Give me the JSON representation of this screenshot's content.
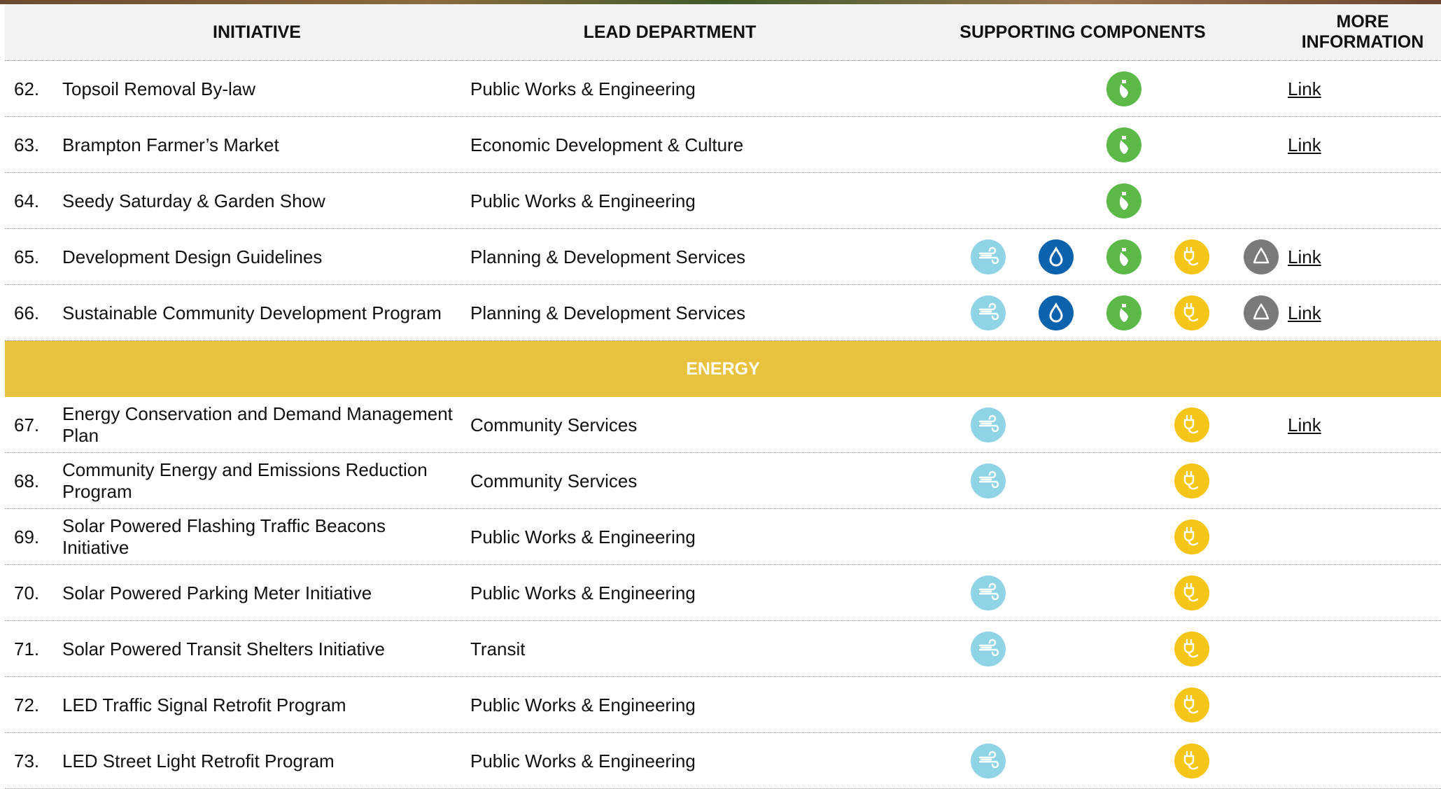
{
  "header": {
    "initiative": "INITIATIVE",
    "lead_department": "LEAD DEPARTMENT",
    "supporting_components": "SUPPORTING COMPONENTS",
    "more_information": "MORE INFORMATION"
  },
  "sections": [
    {
      "rows": [
        {
          "number": "62.",
          "initiative": "Topsoil Removal By-law",
          "department": "Public Works & Engineering",
          "link": "Link"
        },
        {
          "number": "63.",
          "initiative": "Brampton Farmer’s Market",
          "department": "Economic Development & Culture",
          "link": "Link"
        },
        {
          "number": "64.",
          "initiative": "Seedy Saturday & Garden Show",
          "department": "Public Works & Engineering"
        },
        {
          "number": "65.",
          "initiative": "Development Design Guidelines",
          "department": "Planning & Development Services",
          "link": "Link"
        },
        {
          "number": "66.",
          "initiative": "Sustainable Community Development Program",
          "department": "Planning & Development Services",
          "link": "Link"
        }
      ]
    },
    {
      "title": "ENERGY",
      "rows": [
        {
          "number": "67.",
          "initiative": "Energy Conservation and Demand Management Plan",
          "department": "Community Services",
          "link": "Link"
        },
        {
          "number": "68.",
          "initiative": "Community Energy and Emissions Reduction Program",
          "department": "Community Services"
        },
        {
          "number": "69.",
          "initiative": "Solar Powered Flashing Traffic Beacons Initiative",
          "department": "Public Works & Engineering"
        },
        {
          "number": "70.",
          "initiative": "Solar Powered Parking Meter Initiative",
          "department": "Public Works & Engineering"
        },
        {
          "number": "71.",
          "initiative": "Solar Powered Transit Shelters Initiative",
          "department": "Transit"
        },
        {
          "number": "72.",
          "initiative": "LED Traffic Signal Retrofit Program",
          "department": "Public Works & Engineering"
        },
        {
          "number": "73.",
          "initiative": "LED Street Light Retrofit Program",
          "department": "Public Works & Engineering"
        }
      ]
    }
  ]
}
